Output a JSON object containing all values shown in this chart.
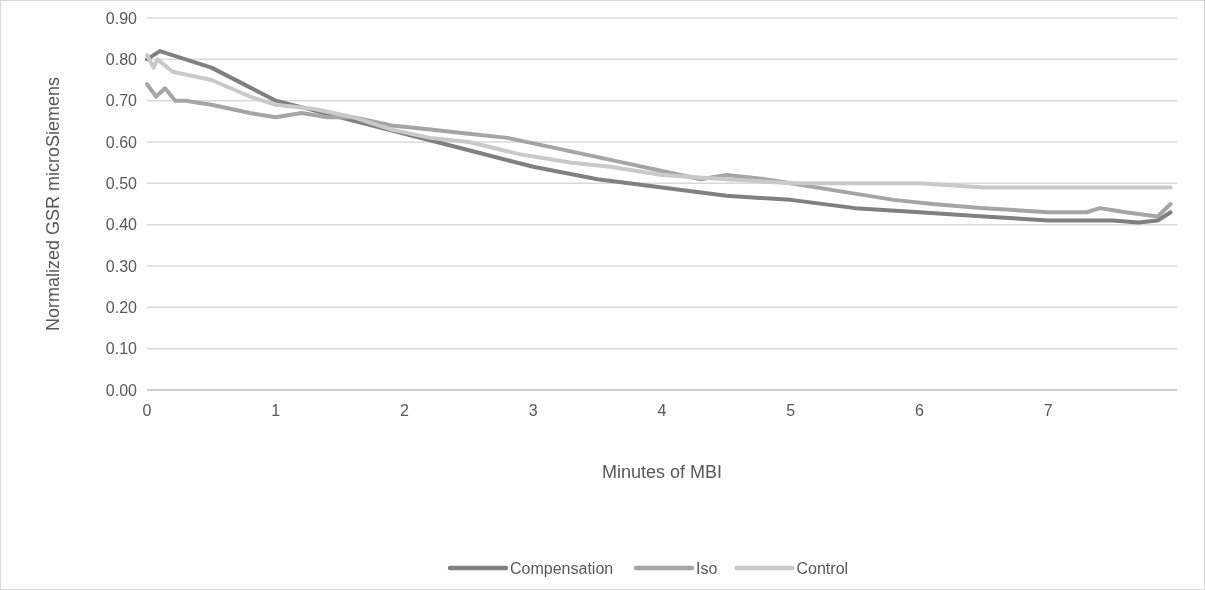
{
  "chart_data": {
    "type": "line",
    "xlabel": "Minutes of MBI",
    "ylabel": "Normalized GSR microSiemens",
    "xlim": [
      0,
      8
    ],
    "xticks": [
      0,
      1,
      2,
      3,
      4,
      5,
      6,
      7
    ],
    "ylim": [
      0,
      0.9
    ],
    "yticks": [
      {
        "value": 0,
        "label": "0.00"
      },
      {
        "value": 0.1,
        "label": "0.10"
      },
      {
        "value": 0.2,
        "label": "0.20"
      },
      {
        "value": 0.3,
        "label": "0.30"
      },
      {
        "value": 0.4,
        "label": "0.40"
      },
      {
        "value": 0.5,
        "label": "0.50"
      },
      {
        "value": 0.6,
        "label": "0.60"
      },
      {
        "value": 0.7,
        "label": "0.70"
      },
      {
        "value": 0.8,
        "label": "0.80"
      },
      {
        "value": 0.9,
        "label": "0.90"
      }
    ],
    "grid": "y",
    "legend": "bottom",
    "line_style": "solid",
    "marker": "none",
    "series": [
      {
        "name": "Compensation",
        "color": "#808080",
        "x": [
          0,
          0.1,
          0.3,
          0.5,
          0.75,
          1.0,
          1.25,
          1.5,
          1.75,
          2.0,
          2.5,
          3.0,
          3.5,
          4.0,
          4.5,
          5.0,
          5.5,
          6.0,
          6.5,
          7.0,
          7.5,
          7.7,
          7.85,
          7.95
        ],
        "values": [
          0.8,
          0.82,
          0.8,
          0.78,
          0.74,
          0.7,
          0.68,
          0.66,
          0.64,
          0.62,
          0.58,
          0.54,
          0.51,
          0.49,
          0.47,
          0.46,
          0.44,
          0.43,
          0.42,
          0.41,
          0.41,
          0.405,
          0.41,
          0.43
        ]
      },
      {
        "name": "Iso",
        "color": "#a5a5a5",
        "x": [
          0,
          0.07,
          0.14,
          0.22,
          0.3,
          0.5,
          0.8,
          1.0,
          1.2,
          1.4,
          1.6,
          1.9,
          2.2,
          2.5,
          2.8,
          3.1,
          3.4,
          3.7,
          4.0,
          4.3,
          4.5,
          4.8,
          5.0,
          5.4,
          5.8,
          6.1,
          6.5,
          7.0,
          7.3,
          7.4,
          7.6,
          7.85,
          7.95
        ],
        "values": [
          0.74,
          0.71,
          0.73,
          0.7,
          0.7,
          0.69,
          0.67,
          0.66,
          0.67,
          0.66,
          0.66,
          0.64,
          0.63,
          0.62,
          0.61,
          0.59,
          0.57,
          0.55,
          0.53,
          0.51,
          0.52,
          0.51,
          0.5,
          0.48,
          0.46,
          0.45,
          0.44,
          0.43,
          0.43,
          0.44,
          0.43,
          0.42,
          0.45
        ]
      },
      {
        "name": "Control",
        "color": "#c9c9c9",
        "x": [
          0,
          0.05,
          0.08,
          0.2,
          0.5,
          0.8,
          1.0,
          1.3,
          1.6,
          1.9,
          2.2,
          2.5,
          2.9,
          3.3,
          3.6,
          4.0,
          4.5,
          5.0,
          5.5,
          6.0,
          6.5,
          7.0,
          7.5,
          7.95
        ],
        "values": [
          0.81,
          0.78,
          0.8,
          0.77,
          0.75,
          0.71,
          0.69,
          0.68,
          0.66,
          0.63,
          0.61,
          0.6,
          0.57,
          0.55,
          0.54,
          0.52,
          0.51,
          0.5,
          0.5,
          0.5,
          0.49,
          0.49,
          0.49,
          0.49
        ]
      }
    ]
  }
}
